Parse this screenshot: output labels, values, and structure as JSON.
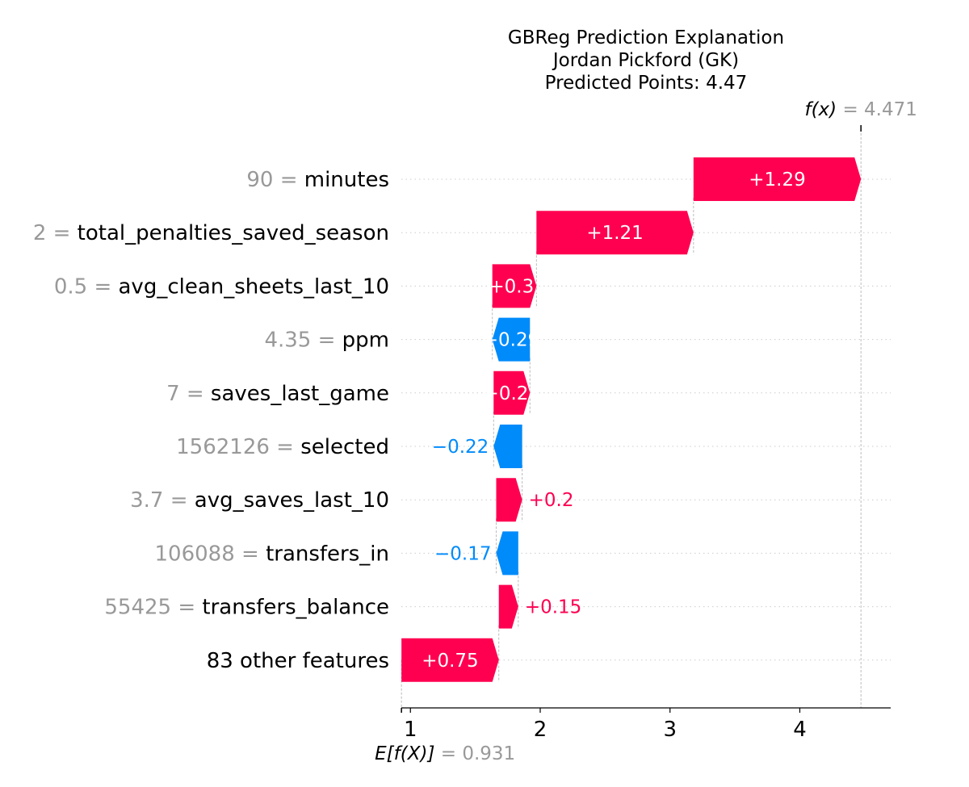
{
  "chart_data": {
    "type": "waterfall",
    "title": [
      "GBReg Prediction Explanation",
      "Jordan Pickford (GK)",
      "Predicted Points: 4.47"
    ],
    "base_value": 0.931,
    "output_value": 4.471,
    "base_label": {
      "main": "E[f(X)]",
      "eq": " = 0.931"
    },
    "output_label": {
      "main": "f(x)",
      "eq": " = 4.471"
    },
    "xlim": [
      0.93,
      4.7
    ],
    "xticks": [
      1,
      2,
      3,
      4
    ],
    "colors": {
      "positive": "#ff0051",
      "negative": "#008bfb",
      "feature_value": "#999999",
      "text": "#000000"
    },
    "features": [
      {
        "value": "90",
        "name": "minutes",
        "contribution": 1.29,
        "label": "+1.29"
      },
      {
        "value": "2",
        "name": "total_penalties_saved_season",
        "contribution": 1.21,
        "label": "+1.21"
      },
      {
        "value": "0.5",
        "name": "avg_clean_sheets_last_10",
        "contribution": 0.34,
        "label": "+0.3."
      },
      {
        "value": "4.35",
        "name": "ppm",
        "contribution": -0.29,
        "label": "−0.29"
      },
      {
        "value": "7",
        "name": "saves_last_game",
        "contribution": 0.28,
        "label": "+0.28"
      },
      {
        "value": "1562126",
        "name": "selected",
        "contribution": -0.22,
        "label": "−0.22"
      },
      {
        "value": "3.7",
        "name": "avg_saves_last_10",
        "contribution": 0.2,
        "label": "+0.2"
      },
      {
        "value": "106088",
        "name": "transfers_in",
        "contribution": -0.17,
        "label": "−0.17"
      },
      {
        "value": "55425",
        "name": "transfers_balance",
        "contribution": 0.15,
        "label": "+0.15"
      },
      {
        "value": "",
        "name": "83 other features",
        "contribution": 0.75,
        "label": "+0.75"
      }
    ]
  }
}
